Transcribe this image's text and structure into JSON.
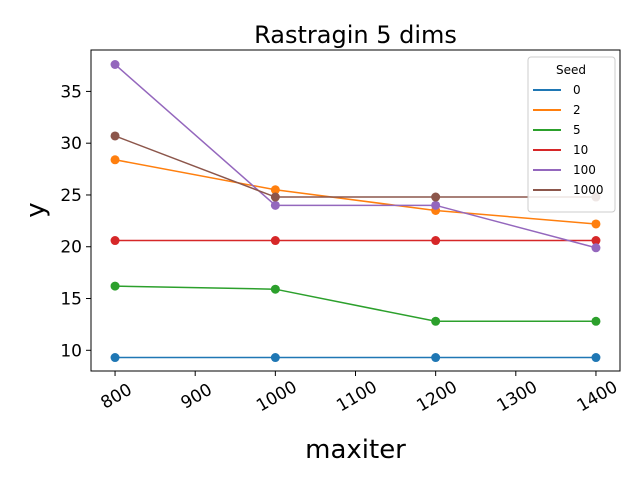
{
  "chart_data": {
    "type": "line",
    "title": "Rastragin 5 dims",
    "xlabel": "maxiter",
    "ylabel": "y",
    "x": [
      800,
      1000,
      1200,
      1400
    ],
    "xlim": [
      770,
      1430
    ],
    "ylim": [
      8.0,
      39.0
    ],
    "xticks": [
      "800",
      "900",
      "1000",
      "1100",
      "1200",
      "1300",
      "1400"
    ],
    "yticks": [
      "10",
      "15",
      "20",
      "25",
      "30",
      "35"
    ],
    "grid": false,
    "legend": {
      "title": "Seed",
      "position": "top-right"
    },
    "series": [
      {
        "name": "0",
        "color": "#1f77b4",
        "values": [
          9.3,
          9.3,
          9.3,
          9.3
        ]
      },
      {
        "name": "2",
        "color": "#ff7f0e",
        "values": [
          28.4,
          25.5,
          23.5,
          22.2
        ]
      },
      {
        "name": "5",
        "color": "#2ca02c",
        "values": [
          16.2,
          15.9,
          12.8,
          12.8
        ]
      },
      {
        "name": "10",
        "color": "#d62728",
        "values": [
          20.6,
          20.6,
          20.6,
          20.6
        ]
      },
      {
        "name": "100",
        "color": "#9467bd",
        "values": [
          37.6,
          24.0,
          24.0,
          19.9
        ]
      },
      {
        "name": "1000",
        "color": "#8c564b",
        "values": [
          30.7,
          24.8,
          24.8,
          24.8
        ]
      }
    ]
  }
}
